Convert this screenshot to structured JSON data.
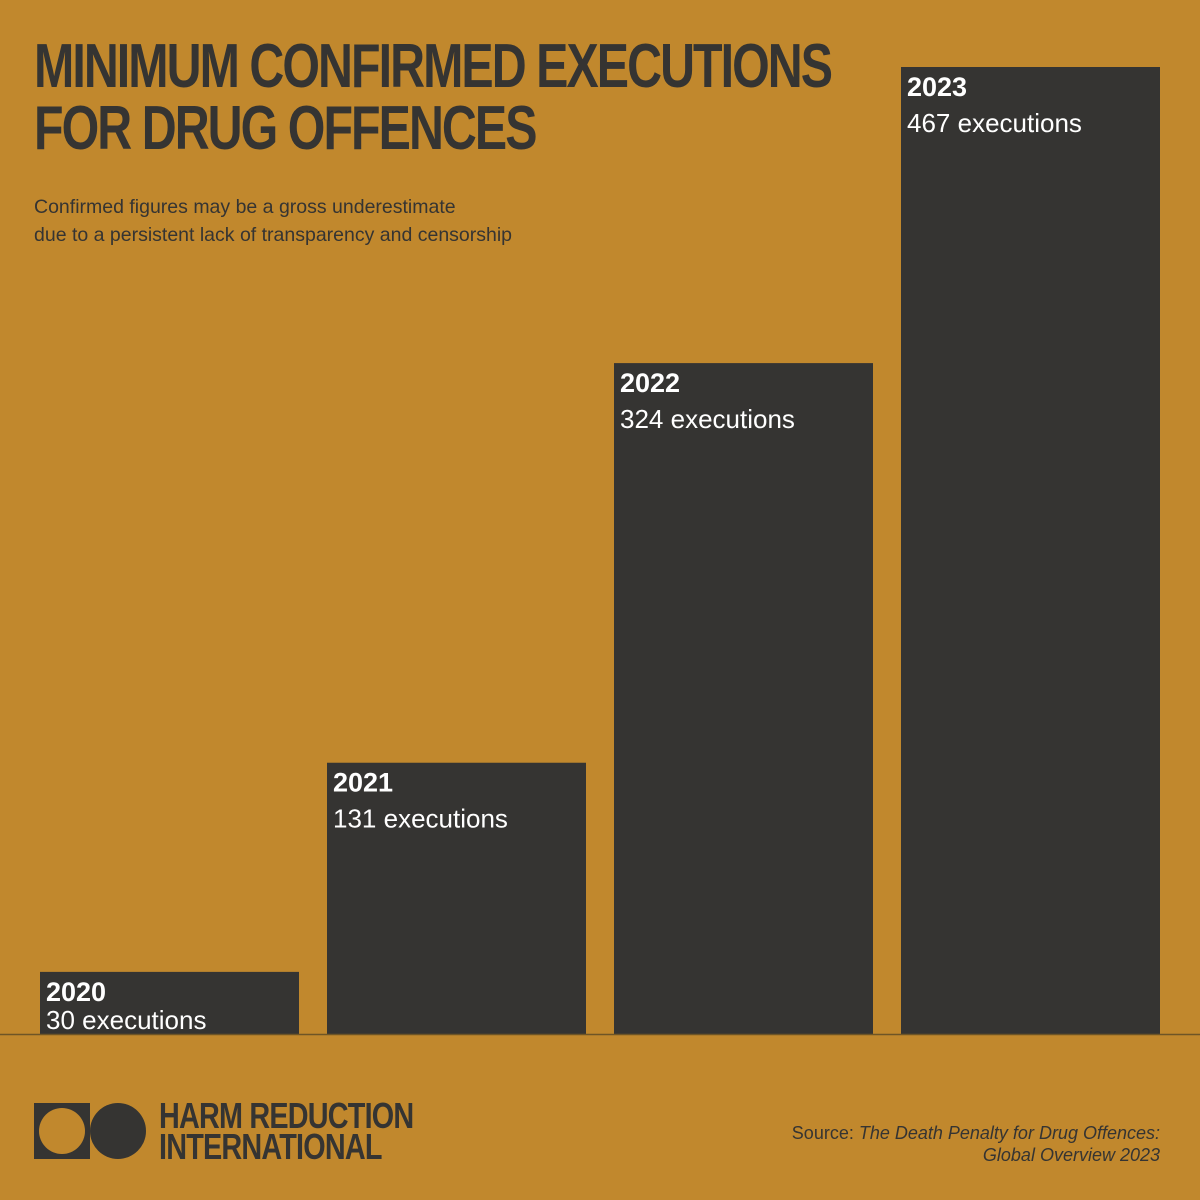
{
  "header": {
    "title_lines": [
      "MINIMUM CONFIRMED EXECUTIONS",
      "FOR DRUG OFFENCES"
    ],
    "subtitle_lines": [
      "Confirmed figures may be a gross underestimate",
      "due to a persistent lack of transparency and censorship"
    ]
  },
  "chart_data": {
    "type": "bar",
    "title": "MINIMUM CONFIRMED EXECUTIONS FOR DRUG OFFENCES",
    "subtitle": "Confirmed figures may be a gross underestimate due to a persistent lack of transparency and censorship",
    "categories": [
      "2020",
      "2021",
      "2022",
      "2023"
    ],
    "values": [
      30,
      131,
      324,
      467
    ],
    "data_labels": [
      "30 executions",
      "131 executions",
      "324 executions",
      "467 executions"
    ],
    "xlabel": "",
    "ylabel": "",
    "grid": false,
    "legend": "none",
    "colors": {
      "bar": "#353432",
      "background": "#C1882D",
      "label": "#FFFFFF"
    }
  },
  "footer": {
    "logo_lines": [
      "HARM REDUCTION",
      "INTERNATIONAL"
    ],
    "source_prefix": "Source: ",
    "source_title_line1": "The Death Penalty for Drug Offences:",
    "source_title_line2": "Global Overview 2023"
  }
}
